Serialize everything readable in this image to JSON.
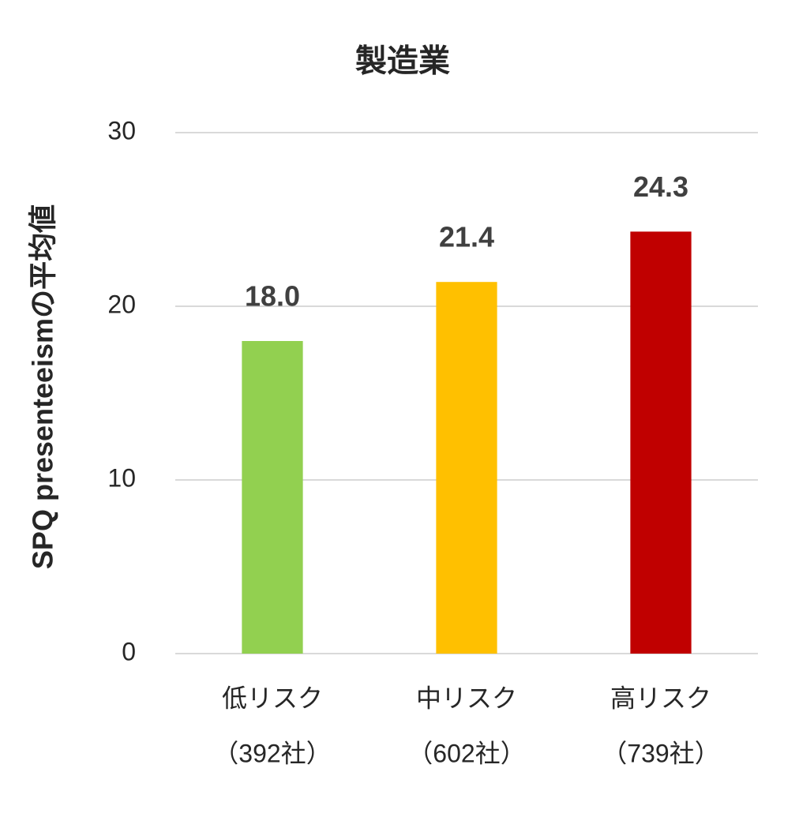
{
  "chart_data": {
    "type": "bar",
    "title": "製造業",
    "y_label": "SPQ presenteeismの平均値",
    "categories": [
      [
        "低リスク",
        "（392社）"
      ],
      [
        "中リスク",
        "（602社）"
      ],
      [
        "高リスク",
        "（739社）"
      ]
    ],
    "values": [
      18.0,
      21.4,
      24.3
    ],
    "value_labels": [
      "18.0",
      "21.4",
      "24.3"
    ],
    "colors": [
      "#92d050",
      "#ffc000",
      "#c00000"
    ],
    "ylim": [
      0,
      30
    ],
    "yticks": [
      0,
      10,
      20,
      30
    ],
    "grid": true
  }
}
